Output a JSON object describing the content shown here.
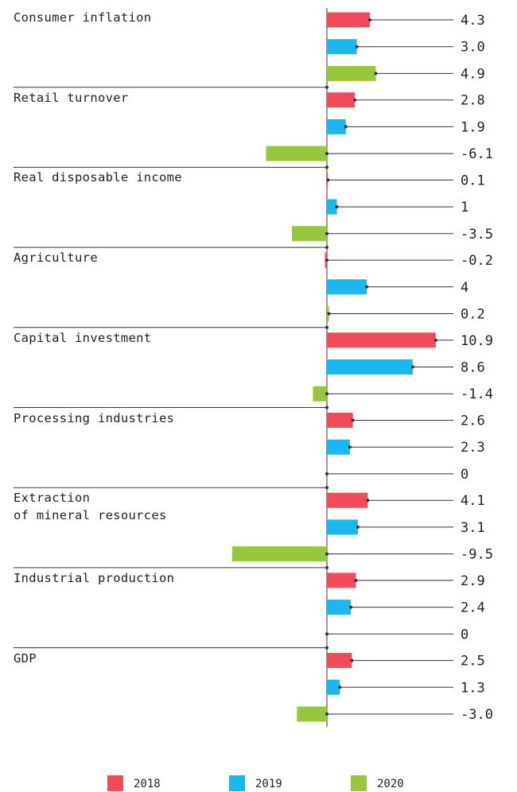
{
  "chart_data": {
    "type": "bar",
    "orientation": "horizontal",
    "categories": [
      "Consumer inflation",
      "Retail turnover",
      "Real disposable income",
      "Agriculture",
      "Capital investment",
      "Processing industries",
      "Extraction\nof mineral resources",
      "Industrial production",
      "GDP"
    ],
    "series": [
      {
        "name": "2018",
        "color": "#f04a5b",
        "values": [
          4.3,
          2.8,
          0.1,
          -0.2,
          10.9,
          2.6,
          4.1,
          2.9,
          2.5
        ],
        "value_labels": [
          "4.3",
          "2.8",
          "0.1",
          "-0.2",
          "10.9",
          "2.6",
          "4.1",
          "2.9",
          "2.5"
        ]
      },
      {
        "name": "2019",
        "color": "#1ab8ee",
        "values": [
          3.0,
          1.9,
          1,
          4,
          8.6,
          2.3,
          3.1,
          2.4,
          1.3
        ],
        "value_labels": [
          "3.0",
          "1.9",
          "1",
          "4",
          "8.6",
          "2.3",
          "3.1",
          "2.4",
          "1.3"
        ]
      },
      {
        "name": "2020",
        "color": "#95c83a",
        "values": [
          4.9,
          -6.1,
          -3.5,
          0.2,
          -1.4,
          0,
          -9.5,
          0,
          -3.0
        ],
        "value_labels": [
          "4.9",
          "-6.1",
          "-3.5",
          "0.2",
          "-1.4",
          "0",
          "-9.5",
          "0",
          "-3.0"
        ]
      }
    ],
    "legend": "bottom"
  }
}
